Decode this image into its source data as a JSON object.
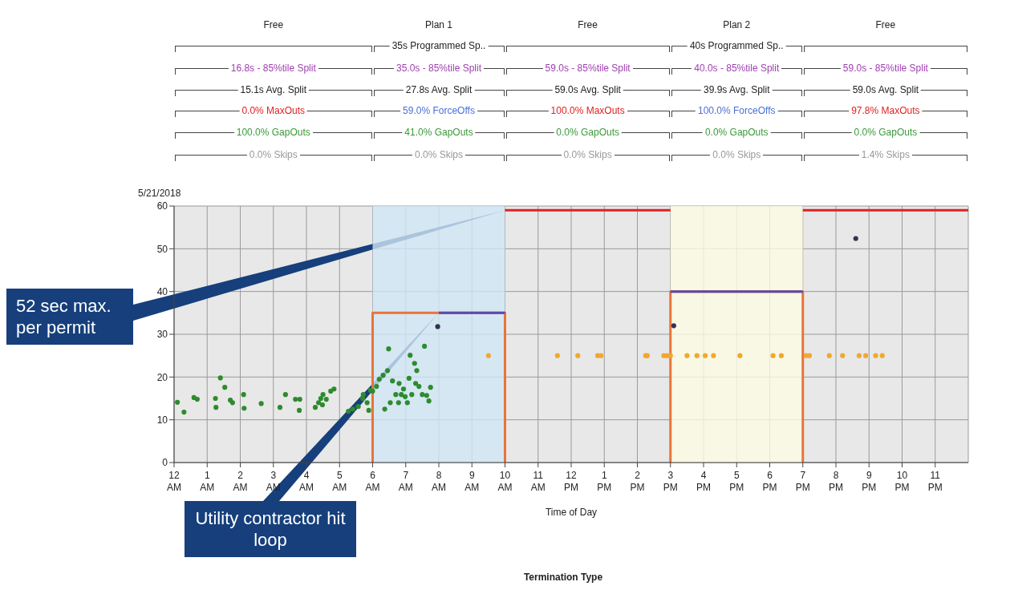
{
  "chart_data": {
    "type": "scatter",
    "xlabel": "Time of Day",
    "xlim": [
      "2018-05-21T00:00",
      "2018-05-22T00:00"
    ],
    "ylim": [
      0,
      60
    ],
    "xticks": [
      {
        "value": "2018-05-21T00:00",
        "label": "12 AM"
      },
      {
        "value": "2018-05-21T01:00",
        "label": "1 AM"
      },
      {
        "value": "2018-05-21T02:00",
        "label": "2 AM"
      },
      {
        "value": "2018-05-21T03:00",
        "label": "3 AM"
      },
      {
        "value": "2018-05-21T04:00",
        "label": "4 AM"
      },
      {
        "value": "2018-05-21T05:00",
        "label": "5 AM"
      },
      {
        "value": "2018-05-21T06:00",
        "label": "6 AM"
      },
      {
        "value": "2018-05-21T07:00",
        "label": "7 AM"
      },
      {
        "value": "2018-05-21T08:00",
        "label": "8 AM"
      },
      {
        "value": "2018-05-21T09:00",
        "label": "9 AM"
      },
      {
        "value": "2018-05-21T10:00",
        "label": "10 AM"
      },
      {
        "value": "2018-05-21T11:00",
        "label": "11 AM"
      },
      {
        "value": "2018-05-21T12:00",
        "label": "12 PM"
      },
      {
        "value": "2018-05-21T13:00",
        "label": "1 PM"
      },
      {
        "value": "2018-05-21T14:00",
        "label": "2 PM"
      },
      {
        "value": "2018-05-21T15:00",
        "label": "3 PM"
      },
      {
        "value": "2018-05-21T16:00",
        "label": "4 PM"
      },
      {
        "value": "2018-05-21T17:00",
        "label": "5 PM"
      },
      {
        "value": "2018-05-21T18:00",
        "label": "6 PM"
      },
      {
        "value": "2018-05-21T19:00",
        "label": "7 PM"
      },
      {
        "value": "2018-05-21T20:00",
        "label": "8 PM"
      },
      {
        "value": "2018-05-21T21:00",
        "label": "9 PM"
      },
      {
        "value": "2018-05-21T22:00",
        "label": "10 PM"
      },
      {
        "value": "2018-05-21T23:00",
        "label": "11 PM"
      }
    ],
    "yticks": [
      0,
      10,
      20,
      30,
      40,
      50,
      60
    ],
    "grid": true,
    "marker": "circle",
    "bands": [
      {
        "axis": "x",
        "from": "2018-05-21T06:00",
        "to": "2018-05-21T10:00",
        "color": "#cfe6f5"
      },
      {
        "axis": "x",
        "from": "2018-05-21T15:00",
        "to": "2018-05-21T19:00",
        "color": "#fdfbe2"
      }
    ],
    "series": [
      {
        "color": "#2e8b2e",
        "x": [
          "2018-05-21T00:06",
          "2018-05-21T00:18",
          "2018-05-21T00:36",
          "2018-05-21T00:42",
          "2018-05-21T01:15",
          "2018-05-21T01:16",
          "2018-05-21T01:24",
          "2018-05-21T01:32",
          "2018-05-21T01:42",
          "2018-05-21T01:46",
          "2018-05-21T02:06",
          "2018-05-21T02:07",
          "2018-05-21T02:38",
          "2018-05-21T03:12",
          "2018-05-21T03:22",
          "2018-05-21T03:40",
          "2018-05-21T03:48",
          "2018-05-21T03:47",
          "2018-05-21T04:16",
          "2018-05-21T04:22",
          "2018-05-21T04:26",
          "2018-05-21T04:29",
          "2018-05-21T04:30",
          "2018-05-21T04:36",
          "2018-05-21T04:44",
          "2018-05-21T04:50",
          "2018-05-21T05:16",
          "2018-05-21T05:24",
          "2018-05-21T05:34",
          "2018-05-21T05:42",
          "2018-05-21T05:43",
          "2018-05-21T05:50",
          "2018-05-21T05:53",
          "2018-05-21T05:56",
          "2018-05-21T06:00",
          "2018-05-21T06:07",
          "2018-05-21T06:12",
          "2018-05-21T06:19",
          "2018-05-21T06:22",
          "2018-05-21T06:27",
          "2018-05-21T06:29",
          "2018-05-21T06:32",
          "2018-05-21T06:36",
          "2018-05-21T06:42",
          "2018-05-21T06:47",
          "2018-05-21T06:48",
          "2018-05-21T06:52",
          "2018-05-21T06:56",
          "2018-05-21T06:59",
          "2018-05-21T07:03",
          "2018-05-21T07:06",
          "2018-05-21T07:08",
          "2018-05-21T07:11",
          "2018-05-21T07:16",
          "2018-05-21T07:18",
          "2018-05-21T07:20",
          "2018-05-21T07:24",
          "2018-05-21T07:30",
          "2018-05-21T07:34",
          "2018-05-21T07:38",
          "2018-05-21T07:42",
          "2018-05-21T07:45"
        ],
        "values": [
          14.1,
          11.8,
          15.2,
          14.8,
          15,
          12.9,
          19.8,
          17.6,
          14.6,
          14,
          15.9,
          12.7,
          13.8,
          12.9,
          15.9,
          14.8,
          14.8,
          12.2,
          12.9,
          14,
          15,
          13.5,
          15.9,
          14.8,
          16.7,
          17.2,
          12,
          12.5,
          13.1,
          15,
          15.9,
          14,
          12.2,
          16.9,
          16.7,
          17.8,
          19.5,
          20.4,
          12.5,
          21.5,
          26.6,
          14,
          19.1,
          15.9,
          14,
          18.5,
          15.9,
          17.2,
          15.4,
          14,
          19.7,
          25.1,
          15.9,
          23.2,
          18.5,
          21.5,
          17.8,
          15.9,
          27.2,
          15.7,
          14.4,
          17.6
        ]
      },
      {
        "color": "#f0a830",
        "x": [
          "2018-05-21T09:30",
          "2018-05-21T11:35",
          "2018-05-21T12:12",
          "2018-05-21T12:48",
          "2018-05-21T12:54",
          "2018-05-21T14:15",
          "2018-05-21T14:18",
          "2018-05-21T14:48",
          "2018-05-21T14:54",
          "2018-05-21T15:00",
          "2018-05-21T15:30",
          "2018-05-21T15:48",
          "2018-05-21T16:03",
          "2018-05-21T16:18",
          "2018-05-21T17:06",
          "2018-05-21T18:06",
          "2018-05-21T18:21",
          "2018-05-21T19:06",
          "2018-05-21T19:12",
          "2018-05-21T19:48",
          "2018-05-21T20:12",
          "2018-05-21T20:42",
          "2018-05-21T20:54",
          "2018-05-21T21:12",
          "2018-05-21T21:24"
        ],
        "values": [
          25,
          25,
          25,
          25,
          25,
          25,
          25,
          25,
          25,
          25,
          25,
          25,
          25,
          25,
          25,
          25,
          25,
          25,
          25,
          25,
          25,
          25,
          25,
          25,
          25
        ]
      },
      {
        "color": "#333355",
        "x": [
          "2018-05-21T07:58",
          "2018-05-21T15:06",
          "2018-05-21T20:36"
        ],
        "values": [
          31.8,
          32,
          52.4
        ]
      },
      {
        "type": "line",
        "color": "#e8743b",
        "marker": "none",
        "x": [
          "2018-05-21T06:00",
          "2018-05-21T06:00",
          "2018-05-21T10:00",
          "2018-05-21T10:00",
          "2018-05-21T12:00",
          "2018-05-21T15:00",
          "2018-05-21T15:00",
          "2018-05-21T19:00",
          "2018-05-21T19:00"
        ],
        "values": [
          0,
          35,
          35,
          0,
          null,
          0,
          40,
          40,
          0
        ]
      },
      {
        "type": "line",
        "color": "#e02020",
        "marker": "none",
        "x": [
          "2018-05-21T10:00",
          "2018-05-21T15:00",
          "2018-05-21T17:00",
          "2018-05-21T19:00",
          "2018-05-22T00:00"
        ],
        "values": [
          59,
          59,
          null,
          59,
          59
        ]
      },
      {
        "type": "line",
        "color": "#5a4aa8",
        "marker": "none",
        "x": [
          "2018-05-21T08:00",
          "2018-05-21T10:00",
          "2018-05-21T12:00",
          "2018-05-21T15:00",
          "2018-05-21T19:00"
        ],
        "values": [
          35,
          35,
          null,
          40,
          40
        ]
      }
    ],
    "annotations": [
      "5/21/2018",
      "Termination Type",
      "Free",
      "Plan 1",
      "Free",
      "Plan 2",
      "Free",
      "35s Programmed Sp..",
      "40s Programmed Sp..",
      "16.8s - 85%tile Split",
      "35.0s - 85%tile Split",
      "59.0s - 85%tile Split",
      "40.0s - 85%tile Split",
      "59.0s - 85%tile Split",
      "15.1s Avg. Split",
      "27.8s Avg. Split",
      "59.0s Avg. Split",
      "39.9s Avg. Split",
      "59.0s Avg. Split",
      "0.0% MaxOuts",
      "59.0% ForceOffs",
      "100.0% MaxOuts",
      "100.0% ForceOffs",
      "97.8% MaxOuts",
      "100.0% GapOuts",
      "41.0% GapOuts",
      "0.0% GapOuts",
      "0.0% GapOuts",
      "0.0% GapOuts",
      "0.0% Skips",
      "0.0% Skips",
      "0.0% Skips",
      "0.0% Skips",
      "1.4% Skips",
      {
        "text": "52 sec max. per permit",
        "x": "2018-05-21T10:00",
        "y": 59
      },
      "Utility contractor hit loop"
    ]
  }
}
